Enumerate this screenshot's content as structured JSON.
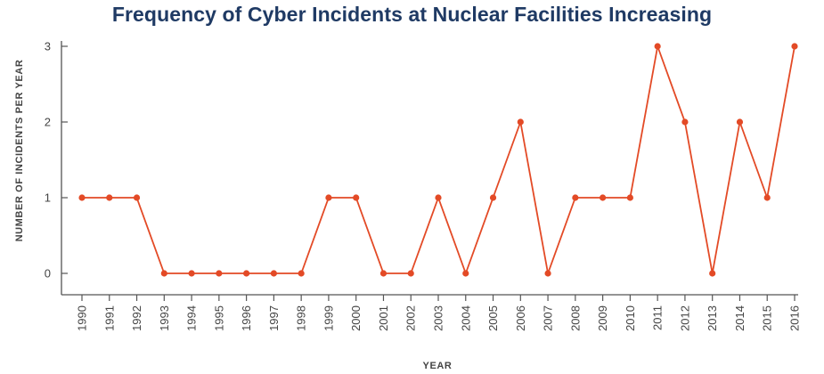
{
  "chart_data": {
    "type": "line",
    "title": "Frequency of Cyber Incidents at Nuclear Facilities Increasing",
    "xlabel": "YEAR",
    "ylabel": "NUMBER OF INCIDENTS PER YEAR",
    "x": [
      "1990",
      "1991",
      "1992",
      "1993",
      "1994",
      "1995",
      "1996",
      "1997",
      "1998",
      "1999",
      "2000",
      "2001",
      "2002",
      "2003",
      "2004",
      "2005",
      "2006",
      "2007",
      "2008",
      "2009",
      "2010",
      "2011",
      "2012",
      "2013",
      "2014",
      "2015",
      "2016"
    ],
    "series": [
      {
        "values": [
          1,
          1,
          1,
          0,
          0,
          0,
          0,
          0,
          0,
          1,
          1,
          0,
          0,
          1,
          0,
          1,
          2,
          0,
          1,
          1,
          1,
          3,
          2,
          0,
          2,
          1,
          3
        ]
      }
    ],
    "yticks": [
      0,
      1,
      2,
      3
    ],
    "ylim": [
      -0.3,
      3
    ],
    "grid": false,
    "colors": {
      "series": "#e34a26",
      "title": "#1f3a64",
      "axis": "#555555"
    }
  }
}
